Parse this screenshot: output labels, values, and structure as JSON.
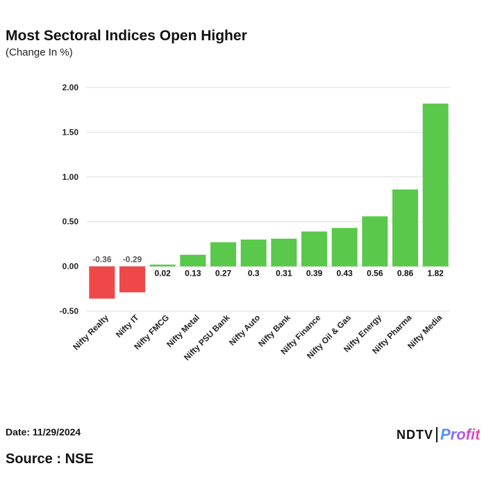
{
  "chart_data": {
    "type": "bar",
    "title": "Most Sectoral Indices Open Higher",
    "subtitle": "(Change In %)",
    "categories": [
      "Nifty Realty",
      "Nifty IT",
      "Nifty FMCG",
      "Nifty Metal",
      "Nifty PSU Bank",
      "Nifty Auto",
      "Nifty Bank",
      "Nifty Finance",
      "Nifty Oil & Gas",
      "Nifty Energy",
      "Nifty Pharma",
      "Nifty Media"
    ],
    "values": [
      -0.36,
      -0.29,
      0.02,
      0.13,
      0.27,
      0.3,
      0.31,
      0.39,
      0.43,
      0.56,
      0.86,
      1.82
    ],
    "value_labels": [
      "-0.36",
      "-0.29",
      "0.02",
      "0.13",
      "0.27",
      "0.3",
      "0.31",
      "0.39",
      "0.43",
      "0.56",
      "0.86",
      "1.82"
    ],
    "yticks": [
      2.0,
      1.5,
      1.0,
      0.5,
      0.0,
      -0.5
    ],
    "ytick_labels": [
      "2.00",
      "1.50",
      "1.00",
      "0.50",
      "0.00",
      "-0.50"
    ],
    "ylim": [
      -0.5,
      2.0
    ],
    "xlabel": "",
    "ylabel": "",
    "grid": true,
    "colors": {
      "positive": "#5ac84a",
      "negative": "#f04848",
      "grid": "#dddddd"
    }
  },
  "footer": {
    "date": "Date: 11/29/2024",
    "source": "Source : NSE"
  },
  "brand": {
    "ndtv": "NDTV",
    "profit": "Profit"
  }
}
